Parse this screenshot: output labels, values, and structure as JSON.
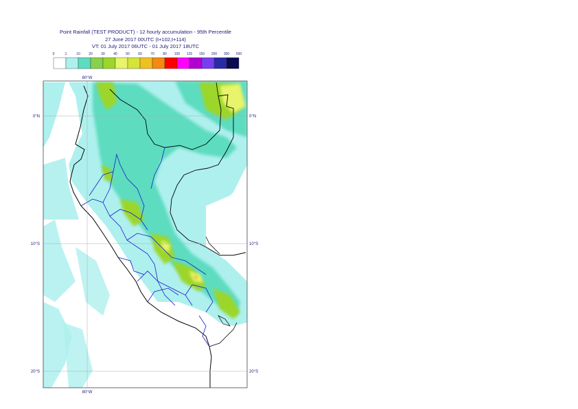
{
  "title": {
    "line1": "Point Rainfall (TEST PRODUCT) - 12 hourly accumulation - 95th Percentile",
    "line2": "27 June 2017 00UTC (t+102,t+114)",
    "line3": "VT: 01 July 2017 06UTC - 01 July 2017 18UTC"
  },
  "legend": {
    "ticks": [
      "0",
      "1",
      "10",
      "20",
      "30",
      "40",
      "50",
      "60",
      "70",
      "80",
      "100",
      "125",
      "150",
      "200",
      "300",
      "500"
    ],
    "colors": [
      "#ffffff",
      "#aef0ee",
      "#5ddcc0",
      "#86d24a",
      "#9cd62a",
      "#e8f46a",
      "#d4e43a",
      "#f0c020",
      "#f58a10",
      "#ff0000",
      "#ff00ff",
      "#b100d0",
      "#7a3cf0",
      "#2a2aa8",
      "#0a0a50"
    ]
  },
  "axes": {
    "lon_top": "80°W",
    "lon_bottom": "80°W",
    "lat_left": [
      "0°N",
      "10°S",
      "20°S"
    ],
    "lat_right": [
      "0°N",
      "10°S",
      "20°S"
    ]
  }
}
